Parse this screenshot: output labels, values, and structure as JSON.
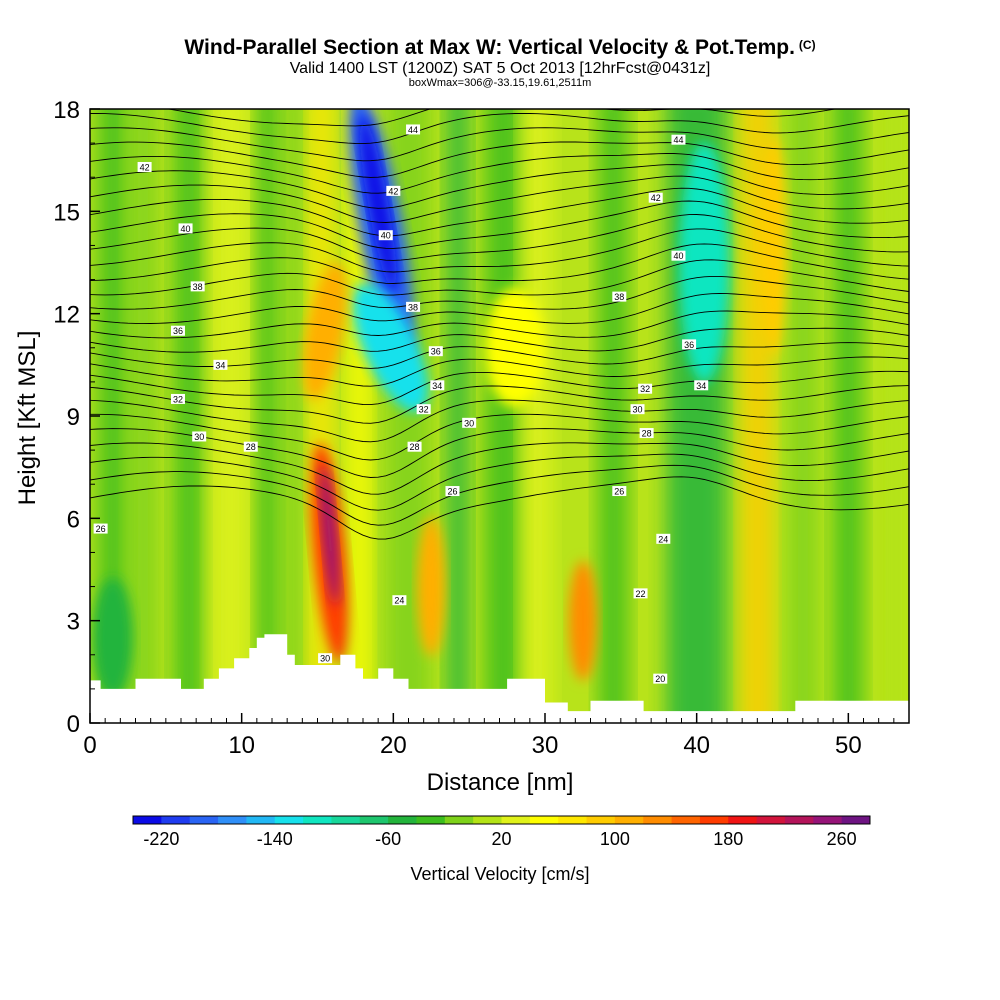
{
  "header": {
    "title": "Wind-Parallel Section at Max W: Vertical Velocity & Pot.Temp.",
    "copyright": "(C)",
    "subtitle": "Valid 1400 LST (1200Z) SAT 5 Oct 2013 [12hrFcst@0431z]",
    "boxnote": "boxWmax=306@-33.15,19.61,2511m"
  },
  "chart_data": {
    "type": "heatmap",
    "title": "Wind-Parallel Section at Max W: Vertical Velocity & Pot.Temp.",
    "xlabel": "Distance [nm]",
    "ylabel": "Height [Kft MSL]",
    "xlim": [
      0,
      54
    ],
    "ylim": [
      0,
      18
    ],
    "xticks": [
      "0",
      "10",
      "20",
      "30",
      "40",
      "50"
    ],
    "xtick_values": [
      0,
      10,
      20,
      30,
      40,
      50
    ],
    "yticks": [
      "0",
      "3",
      "6",
      "9",
      "12",
      "15",
      "18"
    ],
    "ytick_values": [
      0,
      3,
      6,
      9,
      12,
      15,
      18
    ],
    "colorbar": {
      "label": "Vertical Velocity [cm/s]",
      "min": -240,
      "max": 280,
      "step": 20,
      "tick_labels": [
        "-220",
        "-140",
        "-60",
        "20",
        "100",
        "180",
        "260"
      ],
      "tick_values": [
        -220,
        -140,
        -60,
        20,
        100,
        180,
        260
      ],
      "colors": [
        "#0b0be6",
        "#1f3cf0",
        "#2a64f4",
        "#2f8ff8",
        "#22b8f5",
        "#17e1ec",
        "#10e6c0",
        "#18d79a",
        "#1ec66e",
        "#23b43c",
        "#3cbe1e",
        "#7ed21a",
        "#b4e316",
        "#e0f21a",
        "#ffff00",
        "#ffe800",
        "#ffcc00",
        "#ffaf00",
        "#ff8c00",
        "#ff6400",
        "#ff3c00",
        "#f01414",
        "#d2143c",
        "#b4145a",
        "#961478",
        "#6e1482"
      ]
    },
    "terrain_profile": {
      "x": [
        0,
        0.7,
        0.7,
        3,
        3,
        6,
        6,
        7.5,
        7.5,
        8.5,
        8.5,
        9.5,
        9.5,
        10.5,
        10.5,
        11,
        11,
        11.5,
        11.5,
        12,
        12,
        13,
        13,
        13.5,
        13.5,
        14,
        14,
        16.5,
        16.5,
        17.5,
        17.5,
        18,
        18,
        19,
        19,
        20,
        20,
        21,
        21,
        27.5,
        27.5,
        30,
        30,
        31.5,
        31.5,
        33,
        33,
        36.5,
        36.5,
        46.5,
        46.5,
        54
      ],
      "y": [
        1.25,
        1.25,
        1.0,
        1.0,
        1.3,
        1.3,
        1.0,
        1.0,
        1.3,
        1.3,
        1.6,
        1.6,
        1.9,
        1.9,
        2.2,
        2.2,
        2.5,
        2.5,
        2.6,
        2.6,
        2.6,
        2.6,
        2.0,
        2.0,
        1.7,
        1.7,
        1.7,
        1.7,
        2.0,
        2.0,
        1.6,
        1.6,
        1.3,
        1.3,
        1.6,
        1.6,
        1.3,
        1.3,
        1.0,
        1.0,
        1.3,
        1.3,
        0.6,
        0.6,
        0.35,
        0.35,
        0.65,
        0.65,
        0.35,
        0.35,
        0.65,
        0.65
      ]
    },
    "vertical_velocity_features": [
      {
        "label": "updraft core",
        "x": 15.8,
        "y": 5.0,
        "w": 300
      },
      {
        "label": "downdraft core",
        "x": 19.2,
        "y": 15.0,
        "w": -220
      },
      {
        "label": "downdraft",
        "x": 40.5,
        "y": 14.0,
        "w": -110
      },
      {
        "label": "updraft",
        "x": 22.5,
        "y": 3.8,
        "w": 110
      },
      {
        "label": "updraft",
        "x": 32.5,
        "y": 3.0,
        "w": 130
      }
    ],
    "theta_contour_labels": [
      {
        "text": "44",
        "x": 21.3,
        "y": 17.4
      },
      {
        "text": "44",
        "x": 38.8,
        "y": 17.1
      },
      {
        "text": "42",
        "x": 3.6,
        "y": 16.3
      },
      {
        "text": "42",
        "x": 20.0,
        "y": 15.6
      },
      {
        "text": "42",
        "x": 37.3,
        "y": 15.4
      },
      {
        "text": "40",
        "x": 6.3,
        "y": 14.5
      },
      {
        "text": "40",
        "x": 19.5,
        "y": 14.3
      },
      {
        "text": "40",
        "x": 38.8,
        "y": 13.7
      },
      {
        "text": "38",
        "x": 7.1,
        "y": 12.8
      },
      {
        "text": "38",
        "x": 21.3,
        "y": 12.2
      },
      {
        "text": "38",
        "x": 34.9,
        "y": 12.5
      },
      {
        "text": "36",
        "x": 5.8,
        "y": 11.5
      },
      {
        "text": "36",
        "x": 22.8,
        "y": 10.9
      },
      {
        "text": "36",
        "x": 39.5,
        "y": 11.1
      },
      {
        "text": "34",
        "x": 8.6,
        "y": 10.5
      },
      {
        "text": "34",
        "x": 22.9,
        "y": 9.9
      },
      {
        "text": "34",
        "x": 40.3,
        "y": 9.9
      },
      {
        "text": "32",
        "x": 5.8,
        "y": 9.5
      },
      {
        "text": "32",
        "x": 22.0,
        "y": 9.2
      },
      {
        "text": "32",
        "x": 36.6,
        "y": 9.8
      },
      {
        "text": "30",
        "x": 7.2,
        "y": 8.4
      },
      {
        "text": "30",
        "x": 25.0,
        "y": 8.8
      },
      {
        "text": "30",
        "x": 36.1,
        "y": 9.2
      },
      {
        "text": "28",
        "x": 10.6,
        "y": 8.1
      },
      {
        "text": "28",
        "x": 21.4,
        "y": 8.1
      },
      {
        "text": "28",
        "x": 36.7,
        "y": 8.5
      },
      {
        "text": "26",
        "x": 0.7,
        "y": 5.7
      },
      {
        "text": "26",
        "x": 23.9,
        "y": 6.8
      },
      {
        "text": "26",
        "x": 34.9,
        "y": 6.8
      },
      {
        "text": "24",
        "x": 37.8,
        "y": 5.4
      },
      {
        "text": "24",
        "x": 20.4,
        "y": 3.6
      },
      {
        "text": "22",
        "x": 36.3,
        "y": 3.8
      },
      {
        "text": "20",
        "x": 37.6,
        "y": 1.3
      },
      {
        "text": "30",
        "x": 15.5,
        "y": 1.9
      }
    ]
  }
}
